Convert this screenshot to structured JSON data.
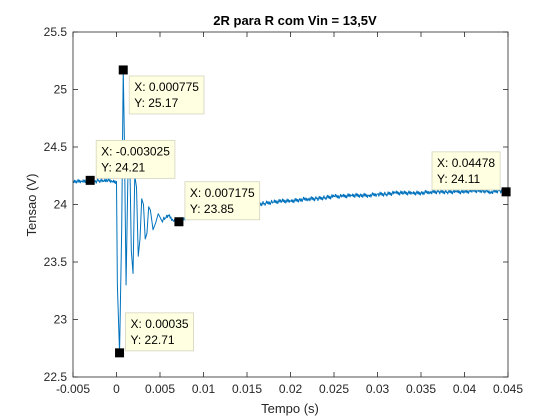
{
  "chart_data": {
    "type": "line",
    "title": "2R para R com Vin = 13,5V",
    "xlabel": "Tempo (s)",
    "ylabel": "Tensao (V)",
    "xlim": [
      -0.005,
      0.045
    ],
    "ylim": [
      22.5,
      25.5
    ],
    "xticks": [
      -0.005,
      0,
      0.005,
      0.01,
      0.015,
      0.02,
      0.025,
      0.03,
      0.035,
      0.04,
      0.045
    ],
    "xtick_labels": [
      "-0.005",
      "0",
      "0.005",
      "0.01",
      "0.015",
      "0.02",
      "0.025",
      "0.03",
      "0.035",
      "0.04",
      "0.045"
    ],
    "yticks": [
      22.5,
      23,
      23.5,
      24,
      24.5,
      25,
      25.5
    ],
    "ytick_labels": [
      "22.5",
      "23",
      "23.5",
      "24",
      "24.5",
      "25",
      "25.5"
    ],
    "grid": false,
    "line_color": "#0072BD",
    "series": [
      {
        "x": [
          -0.005,
          -0.0045,
          -0.004,
          -0.0035,
          -0.003025,
          -0.0025,
          -0.002,
          -0.0015,
          -0.001,
          -0.0005,
          0.0,
          0.0001,
          0.00035,
          0.0006,
          0.000775,
          0.0009,
          0.0011,
          0.0013,
          0.0015,
          0.0017,
          0.0019,
          0.0021,
          0.0023,
          0.0025,
          0.0027,
          0.0029,
          0.0031,
          0.0033,
          0.0035,
          0.0037,
          0.0039,
          0.0042,
          0.0045,
          0.0048,
          0.0052,
          0.0056,
          0.006,
          0.0065,
          0.007175,
          0.008,
          0.009,
          0.01,
          0.011,
          0.012,
          0.013,
          0.014,
          0.015,
          0.016,
          0.017,
          0.018,
          0.019,
          0.02,
          0.021,
          0.022,
          0.023,
          0.024,
          0.025,
          0.026,
          0.027,
          0.028,
          0.029,
          0.03,
          0.031,
          0.032,
          0.033,
          0.034,
          0.035,
          0.036,
          0.037,
          0.038,
          0.039,
          0.04,
          0.041,
          0.042,
          0.043,
          0.044,
          0.04478
        ],
        "y": [
          24.19,
          24.2,
          24.2,
          24.21,
          24.21,
          24.2,
          24.21,
          24.2,
          24.21,
          24.2,
          24.2,
          23.3,
          22.71,
          23.8,
          25.17,
          24.6,
          23.3,
          24.2,
          24.55,
          23.6,
          23.4,
          24.25,
          24.15,
          23.55,
          23.7,
          24.05,
          24.0,
          23.7,
          23.75,
          23.98,
          23.95,
          23.78,
          23.84,
          23.92,
          23.86,
          23.88,
          23.9,
          23.86,
          23.85,
          23.88,
          23.9,
          23.91,
          23.93,
          23.95,
          23.96,
          23.98,
          23.99,
          24.0,
          24.01,
          24.02,
          24.03,
          24.03,
          24.04,
          24.05,
          24.05,
          24.06,
          24.07,
          24.07,
          24.08,
          24.08,
          24.08,
          24.09,
          24.09,
          24.1,
          24.1,
          24.1,
          24.1,
          24.11,
          24.11,
          24.11,
          24.11,
          24.11,
          24.12,
          24.12,
          24.11,
          24.12,
          24.11
        ]
      }
    ],
    "datatips": [
      {
        "x": 0.000775,
        "y": 25.17,
        "lines": [
          "X: 0.000775",
          "Y: 25.17"
        ]
      },
      {
        "x": -0.003025,
        "y": 24.21,
        "lines": [
          "X: -0.003025",
          "Y: 24.21"
        ]
      },
      {
        "x": 0.007175,
        "y": 23.85,
        "lines": [
          "X: 0.007175",
          "Y: 23.85"
        ]
      },
      {
        "x": 0.04478,
        "y": 24.11,
        "lines": [
          "X: 0.04478",
          "Y: 24.11"
        ]
      },
      {
        "x": 0.00035,
        "y": 22.71,
        "lines": [
          "X: 0.00035",
          "Y: 22.71"
        ]
      }
    ]
  }
}
